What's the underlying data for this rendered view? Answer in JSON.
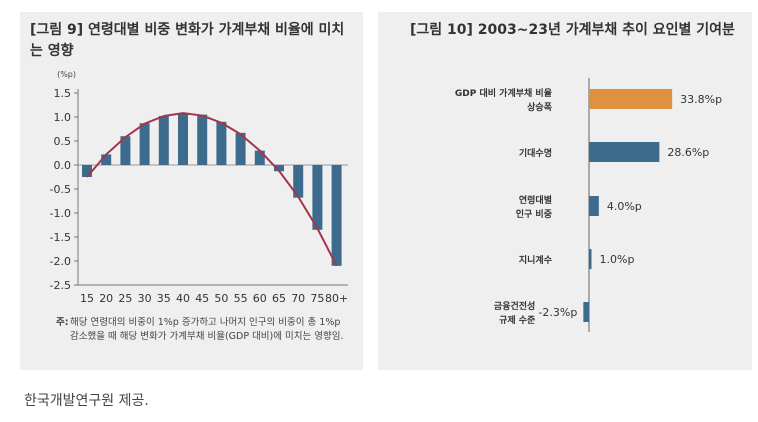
{
  "left": {
    "title": "[그림 9] 연령대별 비중 변화가 가계부채 비율에 미치는 영향",
    "note_label": "주:",
    "note": "해당 연령대의 비중이 1%p 증가하고 나머지 인구의 비중이 총 1%p 감소했을 때 해당 변화가 가계부채 비율(GDP 대비)에 미치는 영향임."
  },
  "right": {
    "title": "[그림 10] 2003~23년 가계부채 추이 요인별 기여분"
  },
  "caption": "한국개발연구원 제공.",
  "chart_data": [
    {
      "type": "bar",
      "unit": "(%p)",
      "categories": [
        "15",
        "20",
        "25",
        "30",
        "35",
        "40",
        "45",
        "50",
        "55",
        "60",
        "65",
        "70",
        "75",
        "80+"
      ],
      "values": [
        -0.25,
        0.22,
        0.6,
        0.87,
        1.02,
        1.08,
        1.05,
        0.9,
        0.67,
        0.3,
        -0.13,
        -0.68,
        -1.35,
        -2.1
      ],
      "trend": [
        -0.25,
        0.22,
        0.58,
        0.86,
        1.02,
        1.08,
        1.03,
        0.88,
        0.64,
        0.3,
        -0.12,
        -0.66,
        -1.32,
        -2.1
      ],
      "ylim": [
        -2.5,
        1.5
      ],
      "yticks": [
        "1.5",
        "1.0",
        "0.5",
        "0.0",
        "-0.5",
        "-1.0",
        "-1.5",
        "-2.0",
        "-2.5"
      ],
      "colors": {
        "bar": "#3d6b8e",
        "trend": "#a3364a"
      }
    },
    {
      "type": "bar",
      "orientation": "horizontal",
      "categories": [
        [
          "GDP 대비 가계부채 비율",
          "상승폭"
        ],
        [
          "기대수명"
        ],
        [
          "연령대별",
          "인구 비중"
        ],
        [
          "지니계수"
        ],
        [
          "금융건전성",
          "규제 수준"
        ]
      ],
      "values": [
        33.8,
        28.6,
        4.0,
        1.0,
        -2.3
      ],
      "labels": [
        "33.8%p",
        "28.6%p",
        "4.0%p",
        "1.0%p",
        "-2.3%p"
      ],
      "colors": {
        "highlight": "#e0913f",
        "bar": "#3d6b8e"
      }
    }
  ]
}
